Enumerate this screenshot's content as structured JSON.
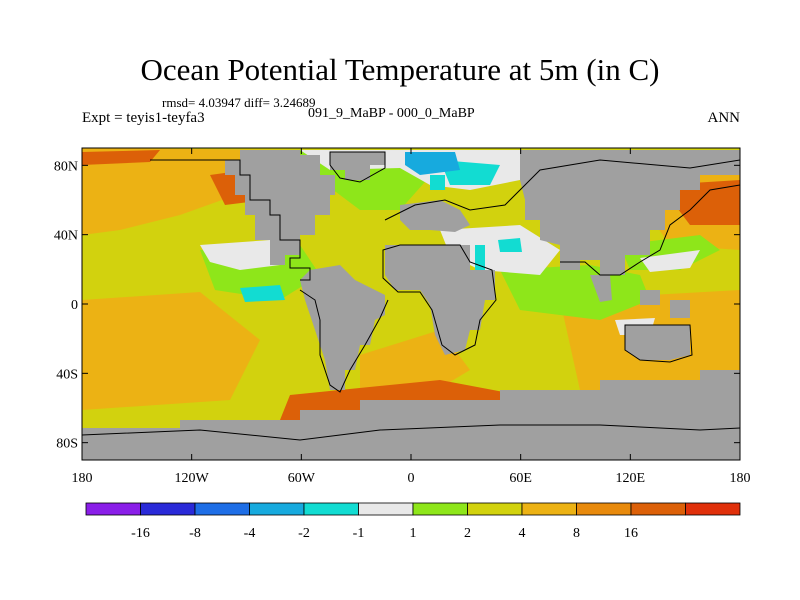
{
  "title": "Ocean Potential Temperature at 5m (in C)",
  "stats": "rmsd= 4.03947 diff= 3.24689",
  "experiment": "Expt = teyis1-teyfa3",
  "period": "091_9_MaBP - 000_0_MaBP",
  "season": "ANN",
  "lat_ticks": [
    {
      "value": 80,
      "label": "80N"
    },
    {
      "value": 40,
      "label": "40N"
    },
    {
      "value": 0,
      "label": "0"
    },
    {
      "value": -40,
      "label": "40S"
    },
    {
      "value": -80,
      "label": "80S"
    }
  ],
  "lon_ticks": [
    {
      "value": -180,
      "label": "180"
    },
    {
      "value": -120,
      "label": "120W"
    },
    {
      "value": -60,
      "label": "60W"
    },
    {
      "value": 0,
      "label": "0"
    },
    {
      "value": 60,
      "label": "60E"
    },
    {
      "value": 120,
      "label": "120E"
    },
    {
      "value": 180,
      "label": "180"
    }
  ],
  "colorbar": {
    "colors": [
      "#8a1ee8",
      "#2a2ad8",
      "#1e6ee6",
      "#17aade",
      "#12dcd2",
      "#e9e9e9",
      "#8ee61a",
      "#d2d20e",
      "#ecb214",
      "#e88a0c",
      "#dc6008",
      "#e0300a"
    ],
    "labels": [
      "-16",
      "-8",
      "-4",
      "-2",
      "-1",
      "1",
      "2",
      "4",
      "8",
      "16"
    ]
  },
  "land_color": "#a0a0a0",
  "map_extent": {
    "lon": [
      -180,
      180
    ],
    "lat": [
      -90,
      90
    ]
  }
}
